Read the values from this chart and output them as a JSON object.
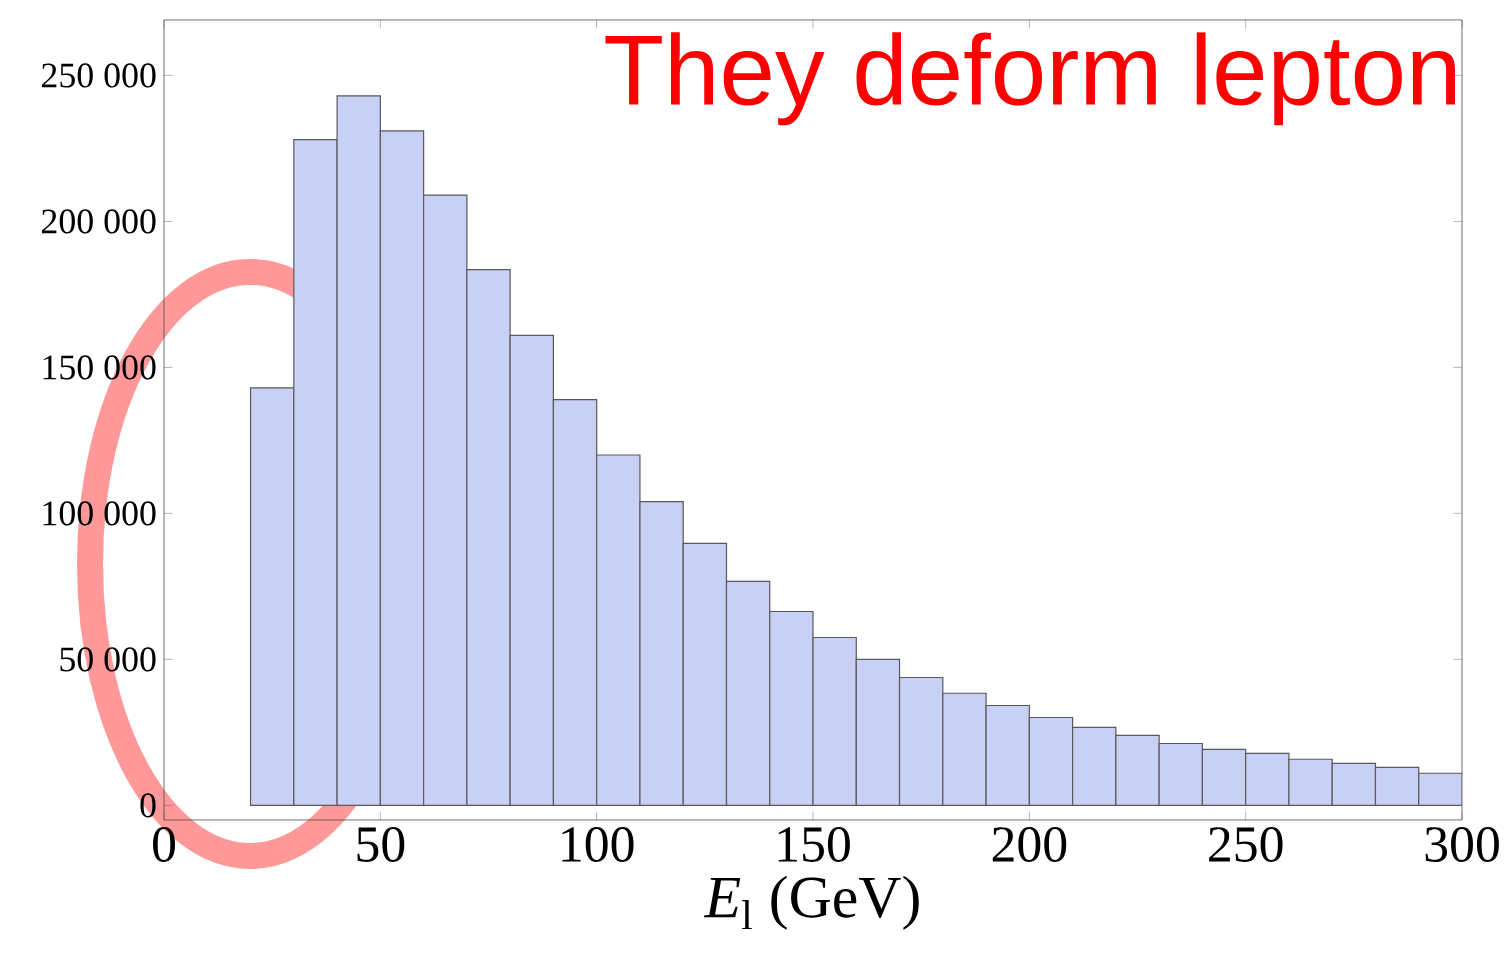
{
  "chart_data": {
    "type": "histogram",
    "bins": [
      20,
      30,
      40,
      50,
      60,
      70,
      80,
      90,
      100,
      110,
      120,
      130,
      140,
      150,
      160,
      170,
      180,
      190,
      200,
      210,
      220,
      230,
      240,
      250,
      260,
      270,
      280,
      290,
      300
    ],
    "values": [
      143000,
      228000,
      243000,
      231000,
      209000,
      183500,
      161000,
      139000,
      120000,
      104000,
      89700,
      76700,
      66400,
      57500,
      50000,
      43800,
      38400,
      34200,
      30100,
      26700,
      24000,
      21200,
      19200,
      17800,
      15800,
      14400,
      13000,
      11000
    ],
    "color": "#c9d0f5",
    "xlabel": "*E*$_{l}$ (GeV)",
    "xlim": [
      0,
      300
    ],
    "xticks": [
      0,
      50,
      100,
      150,
      200,
      250,
      300
    ],
    "ylim": [
      -5000,
      269000
    ],
    "yticks": [
      0,
      {
        "value": 50000,
        "label": "50 000"
      },
      {
        "value": 100000,
        "label": "100 000"
      },
      {
        "value": 150000,
        "label": "150 000"
      },
      {
        "value": 200000,
        "label": "200 000"
      },
      {
        "value": 250000,
        "label": "250 000"
      }
    ],
    "annotations": [
      "They deform lepton"
    ],
    "grid": false
  }
}
